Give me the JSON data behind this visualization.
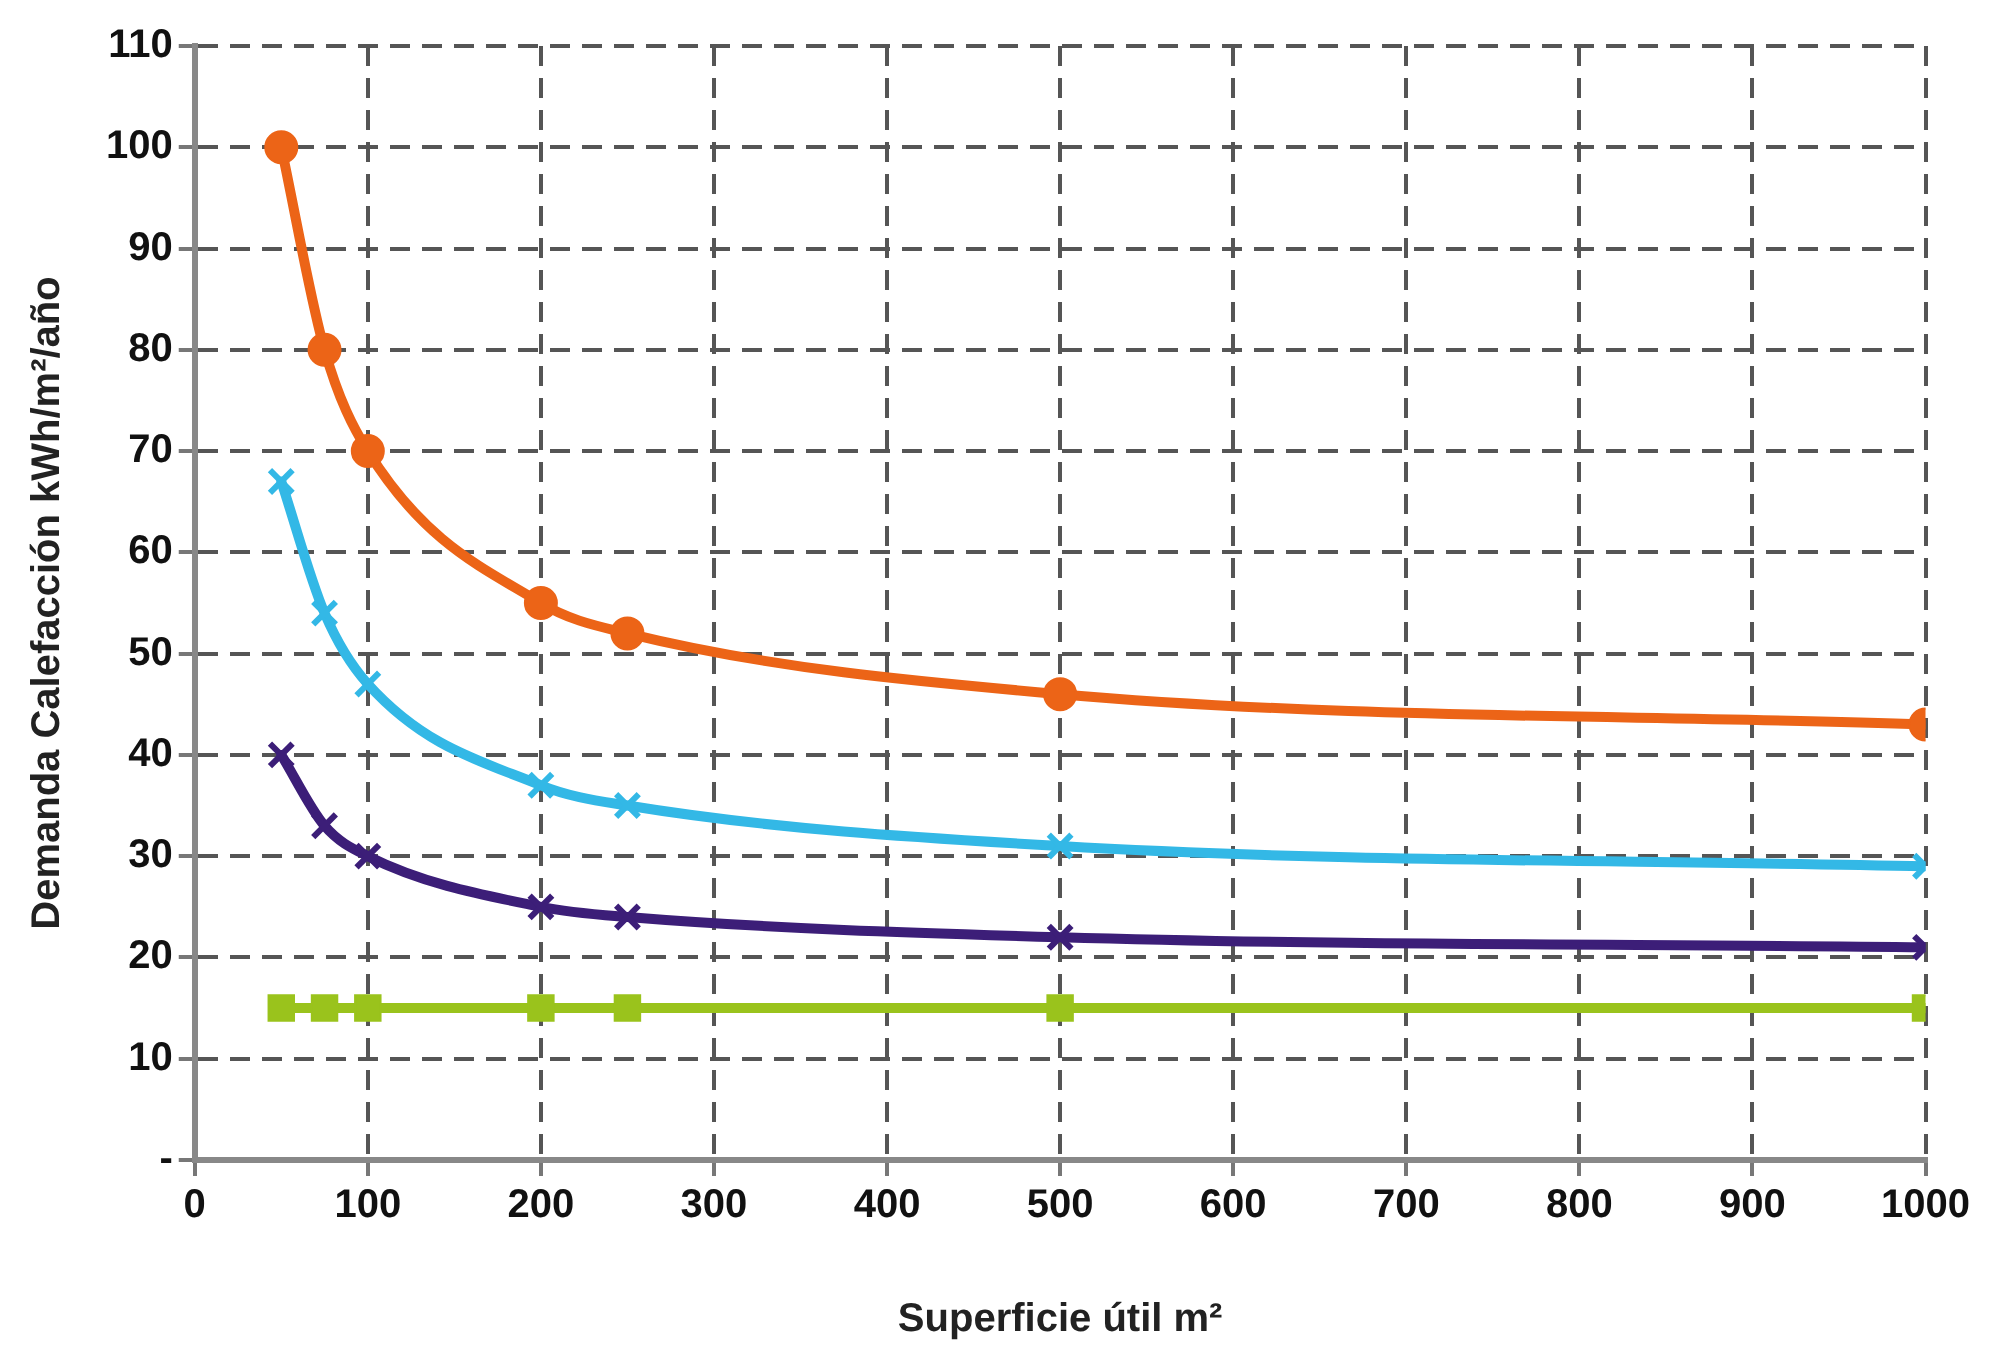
{
  "chart_data": {
    "type": "line",
    "xlabel": "Superficie útil m²",
    "ylabel": "Demanda Calefacción kWh/m²/año",
    "x": [
      50,
      75,
      100,
      200,
      250,
      500,
      1000
    ],
    "series": [
      {
        "color": "#9ac31c",
        "marker": "square",
        "values": [
          15,
          15,
          15,
          15,
          15,
          15,
          15
        ]
      },
      {
        "color": "#3c1e78",
        "marker": "cross",
        "values": [
          40,
          33,
          30,
          25,
          24,
          22,
          21
        ]
      },
      {
        "color": "#33b8e6",
        "marker": "cross",
        "values": [
          67,
          54,
          47,
          37,
          35,
          31,
          29
        ]
      },
      {
        "color": "#ec6417",
        "marker": "circle",
        "values": [
          100,
          80,
          70,
          55,
          52,
          46,
          43
        ]
      }
    ],
    "xlim": [
      0,
      1000
    ],
    "xticks": [
      0,
      100,
      200,
      300,
      400,
      500,
      600,
      700,
      800,
      900,
      1000
    ],
    "ylim": [
      0,
      110
    ],
    "yticks": [
      {
        "value": 0,
        "label": "-"
      },
      10,
      20,
      30,
      40,
      50,
      60,
      70,
      80,
      90,
      100,
      110
    ],
    "grid": true,
    "line_style": "solid",
    "legend": false
  }
}
